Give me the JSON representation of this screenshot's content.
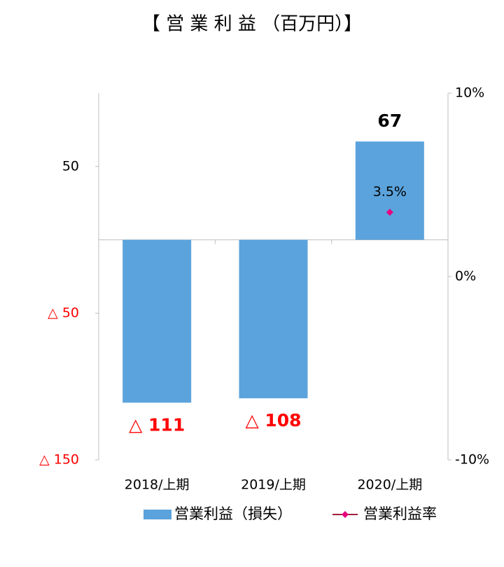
{
  "chart_data": {
    "type": "bar",
    "title": "【 営 業 利 益 （百万円）】",
    "categories": [
      "2018/上期",
      "2019/上期",
      "2020/上期"
    ],
    "series": [
      {
        "name": "営業利益（損失）",
        "type": "bar",
        "color": "#5ba3dc",
        "values": [
          -111,
          -108,
          67
        ],
        "value_labels": [
          "△ 111",
          "△ 108",
          "67"
        ]
      },
      {
        "name": "営業利益率",
        "type": "line",
        "axis": "y2",
        "color": "#e6007e",
        "line_color": "#a0203c",
        "values": [
          null,
          null,
          3.5
        ],
        "value_labels": [
          null,
          null,
          "3.5%"
        ]
      }
    ],
    "ylim": [
      -150,
      100
    ],
    "yticks": [
      50,
      {
        "value": -50,
        "label": "△ 50"
      },
      {
        "value": -150,
        "label": "△ 150"
      }
    ],
    "negative_color": "#ff0000",
    "y2lim": [
      -10,
      10
    ],
    "y2ticks": [
      {
        "value": 10,
        "label": "10%"
      },
      {
        "value": 0,
        "label": "0%"
      },
      {
        "value": -10,
        "label": "-10%"
      }
    ]
  }
}
